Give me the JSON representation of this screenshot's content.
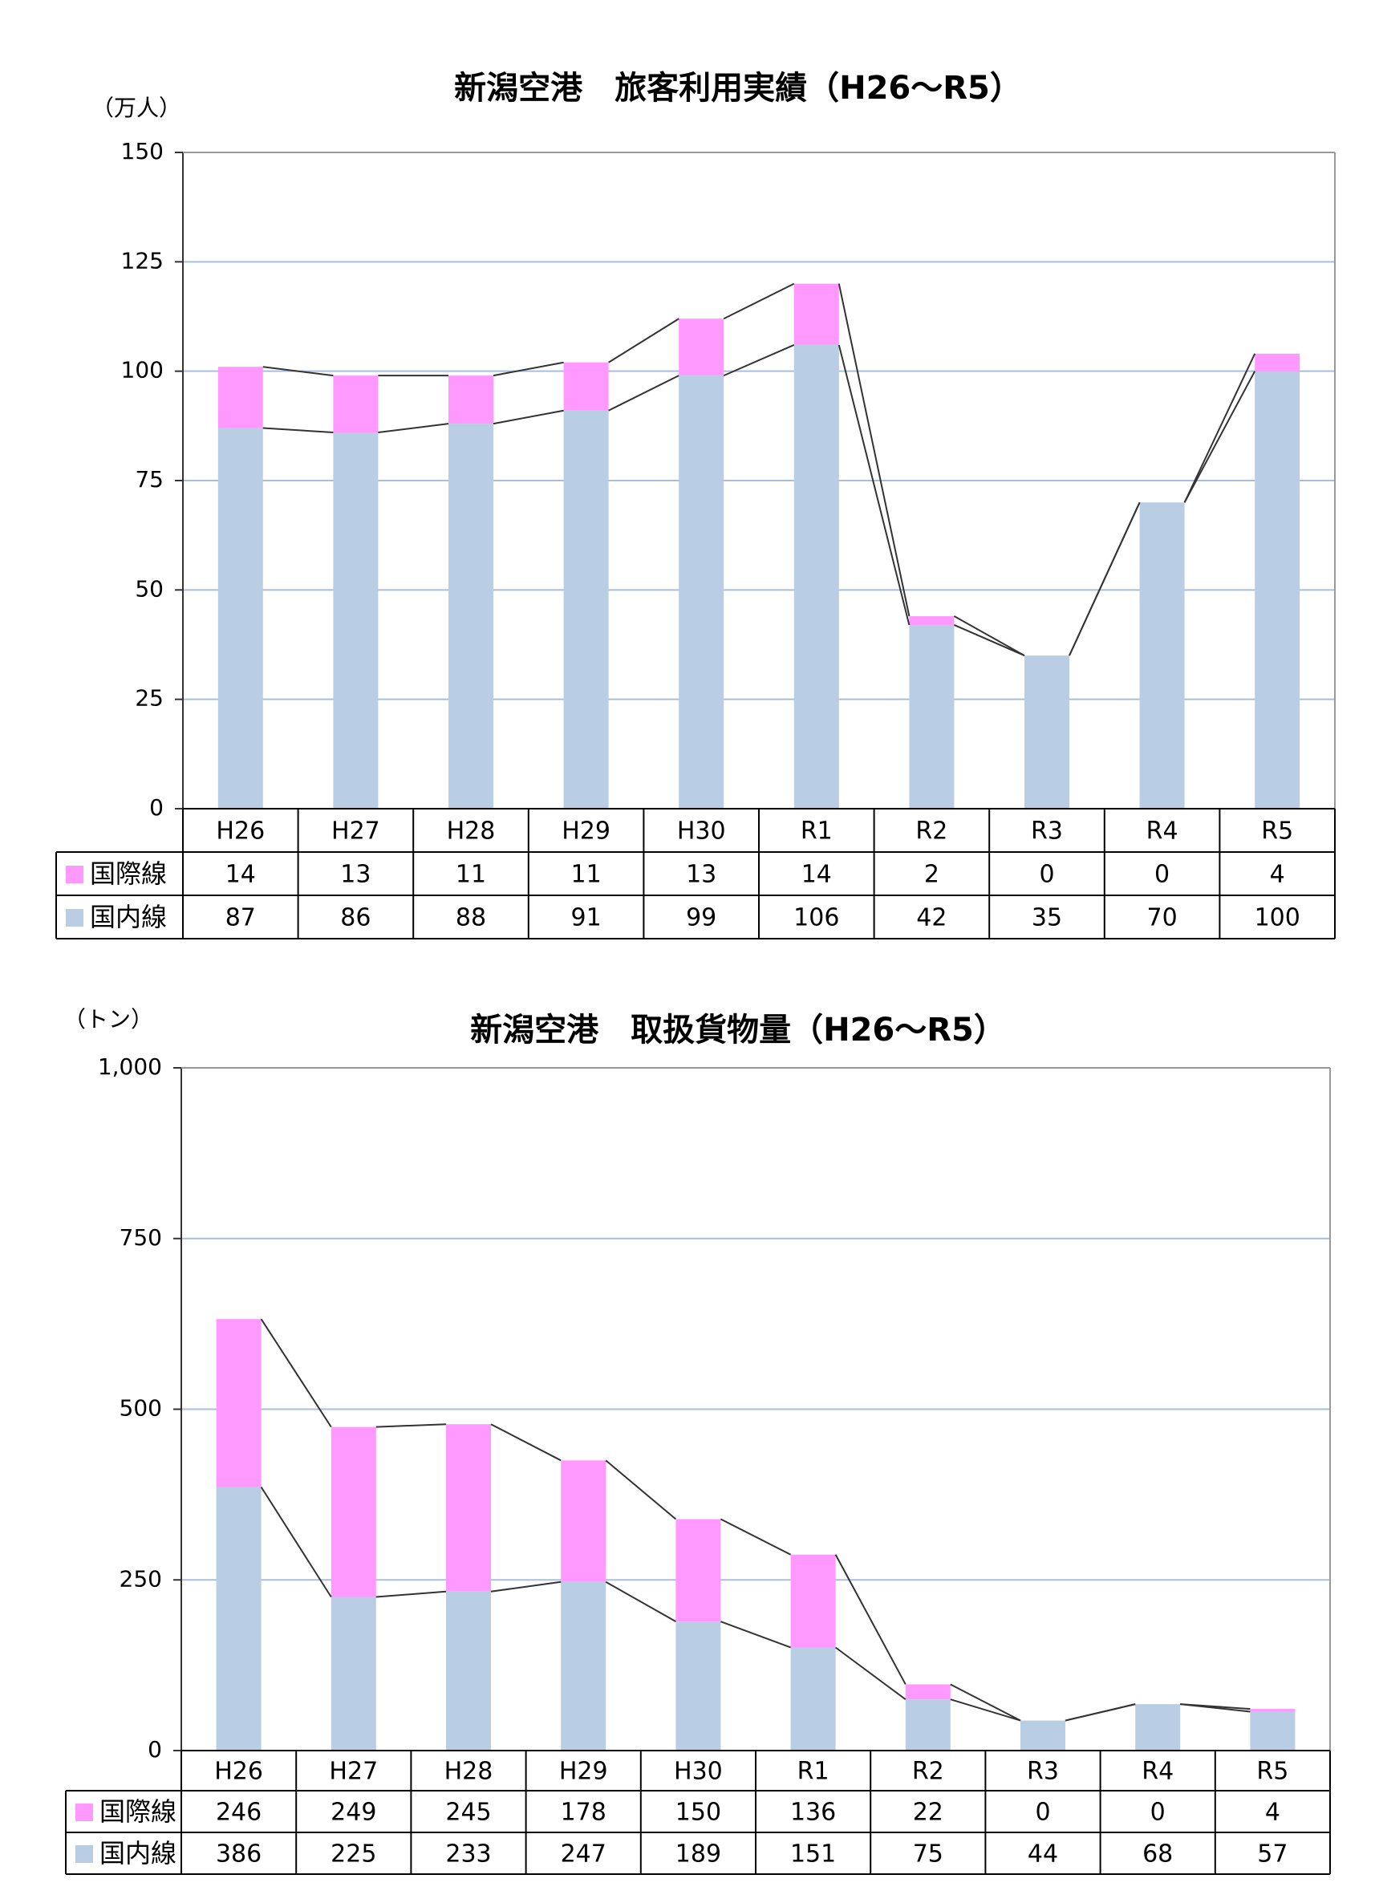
{
  "chart_data": [
    {
      "type": "bar",
      "stacked": true,
      "title": "新潟空港　旅客利用実績（H26～R5）",
      "unit_label": "（万人）",
      "categories": [
        "H26",
        "H27",
        "H28",
        "H29",
        "H30",
        "R1",
        "R2",
        "R3",
        "R4",
        "R5"
      ],
      "series": [
        {
          "name": "国内線",
          "color": "#b9cde5",
          "values": [
            87,
            86,
            88,
            91,
            99,
            106,
            42,
            35,
            70,
            100
          ]
        },
        {
          "name": "国際線",
          "color": "#ff99ff",
          "values": [
            14,
            13,
            11,
            11,
            13,
            14,
            2,
            0,
            0,
            4
          ]
        }
      ],
      "ylim": [
        0,
        150
      ],
      "yticks": [
        0,
        25,
        50,
        75,
        100,
        125,
        150
      ],
      "ytick_labels": [
        "0",
        "25",
        "50",
        "75",
        "100",
        "125",
        "150"
      ],
      "grid": true,
      "table_rows": [
        {
          "label": "国際線",
          "color": "#ff99ff",
          "values": [
            "14",
            "13",
            "11",
            "11",
            "13",
            "14",
            "2",
            "0",
            "0",
            "4"
          ]
        },
        {
          "label": "国内線",
          "color": "#b9cde5",
          "values": [
            "87",
            "86",
            "88",
            "91",
            "99",
            "106",
            "42",
            "35",
            "70",
            "100"
          ]
        }
      ]
    },
    {
      "type": "bar",
      "stacked": true,
      "title": "新潟空港　取扱貨物量（H26～R5）",
      "unit_label": "（トン）",
      "categories": [
        "H26",
        "H27",
        "H28",
        "H29",
        "H30",
        "R1",
        "R2",
        "R3",
        "R4",
        "R5"
      ],
      "series": [
        {
          "name": "国内線",
          "color": "#b9cde5",
          "values": [
            386,
            225,
            233,
            247,
            189,
            151,
            75,
            44,
            68,
            57
          ]
        },
        {
          "name": "国際線",
          "color": "#ff99ff",
          "values": [
            246,
            249,
            245,
            178,
            150,
            136,
            22,
            0,
            0,
            4
          ]
        }
      ],
      "ylim": [
        0,
        1000
      ],
      "yticks": [
        0,
        250,
        500,
        750,
        1000
      ],
      "ytick_labels": [
        "0",
        "250",
        "500",
        "750",
        "1,000"
      ],
      "grid": true,
      "table_rows": [
        {
          "label": "国際線",
          "color": "#ff99ff",
          "values": [
            "246",
            "249",
            "245",
            "178",
            "150",
            "136",
            "22",
            "0",
            "0",
            "4"
          ]
        },
        {
          "label": "国内線",
          "color": "#b9cde5",
          "values": [
            "386",
            "225",
            "233",
            "247",
            "189",
            "151",
            "75",
            "44",
            "68",
            "57"
          ]
        }
      ]
    }
  ]
}
